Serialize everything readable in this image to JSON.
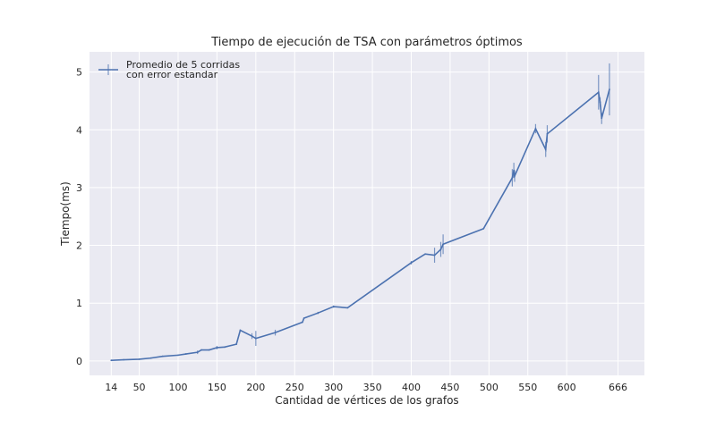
{
  "chart_data": {
    "type": "line",
    "title": "Tiempo de ejecución de TSA con parámetros óptimos",
    "xlabel": "Cantidad de vértices de los grafos",
    "ylabel": "Tiempo(ms)",
    "xlim": [
      -14,
      700
    ],
    "ylim": [
      -0.25,
      5.35
    ],
    "xticks": [
      14,
      50,
      100,
      150,
      200,
      250,
      300,
      350,
      400,
      450,
      500,
      550,
      600,
      666
    ],
    "yticks": [
      0,
      1,
      2,
      3,
      4,
      5
    ],
    "grid": true,
    "legend_position": "top-left",
    "legend_label_lines": [
      "Promedio de 5 corridas",
      "con error estandar"
    ],
    "colors": {
      "line": "#4c72b0",
      "background": "#eaeaf2",
      "grid": "#ffffff"
    },
    "series": [
      {
        "name": "Promedio de 5 corridas con error estandar",
        "x": [
          14,
          30,
          50,
          65,
          80,
          100,
          110,
          125,
          130,
          140,
          150,
          160,
          175,
          180,
          195,
          200,
          225,
          260,
          262,
          280,
          300,
          318,
          400,
          418,
          430,
          438,
          441,
          493,
          530,
          532,
          533,
          560,
          573,
          575,
          641,
          643,
          645,
          655
        ],
        "y": [
          0.01,
          0.02,
          0.03,
          0.05,
          0.08,
          0.1,
          0.12,
          0.15,
          0.19,
          0.19,
          0.23,
          0.24,
          0.29,
          0.53,
          0.43,
          0.39,
          0.49,
          0.67,
          0.74,
          0.83,
          0.94,
          0.92,
          1.7,
          1.85,
          1.83,
          1.93,
          2.02,
          2.29,
          3.17,
          3.3,
          3.2,
          4.02,
          3.66,
          3.93,
          4.65,
          4.48,
          4.2,
          4.7
        ],
        "error": [
          0,
          0,
          0,
          0,
          0,
          0,
          0,
          0.03,
          0,
          0,
          0.03,
          0,
          0,
          0,
          0.05,
          0.13,
          0.05,
          0,
          0,
          0.02,
          0.02,
          0,
          0.03,
          0,
          0.13,
          0.13,
          0.17,
          0,
          0.15,
          0.13,
          0.1,
          0.08,
          0.13,
          0.15,
          0.3,
          0.08,
          0.1,
          0.45
        ]
      }
    ]
  }
}
